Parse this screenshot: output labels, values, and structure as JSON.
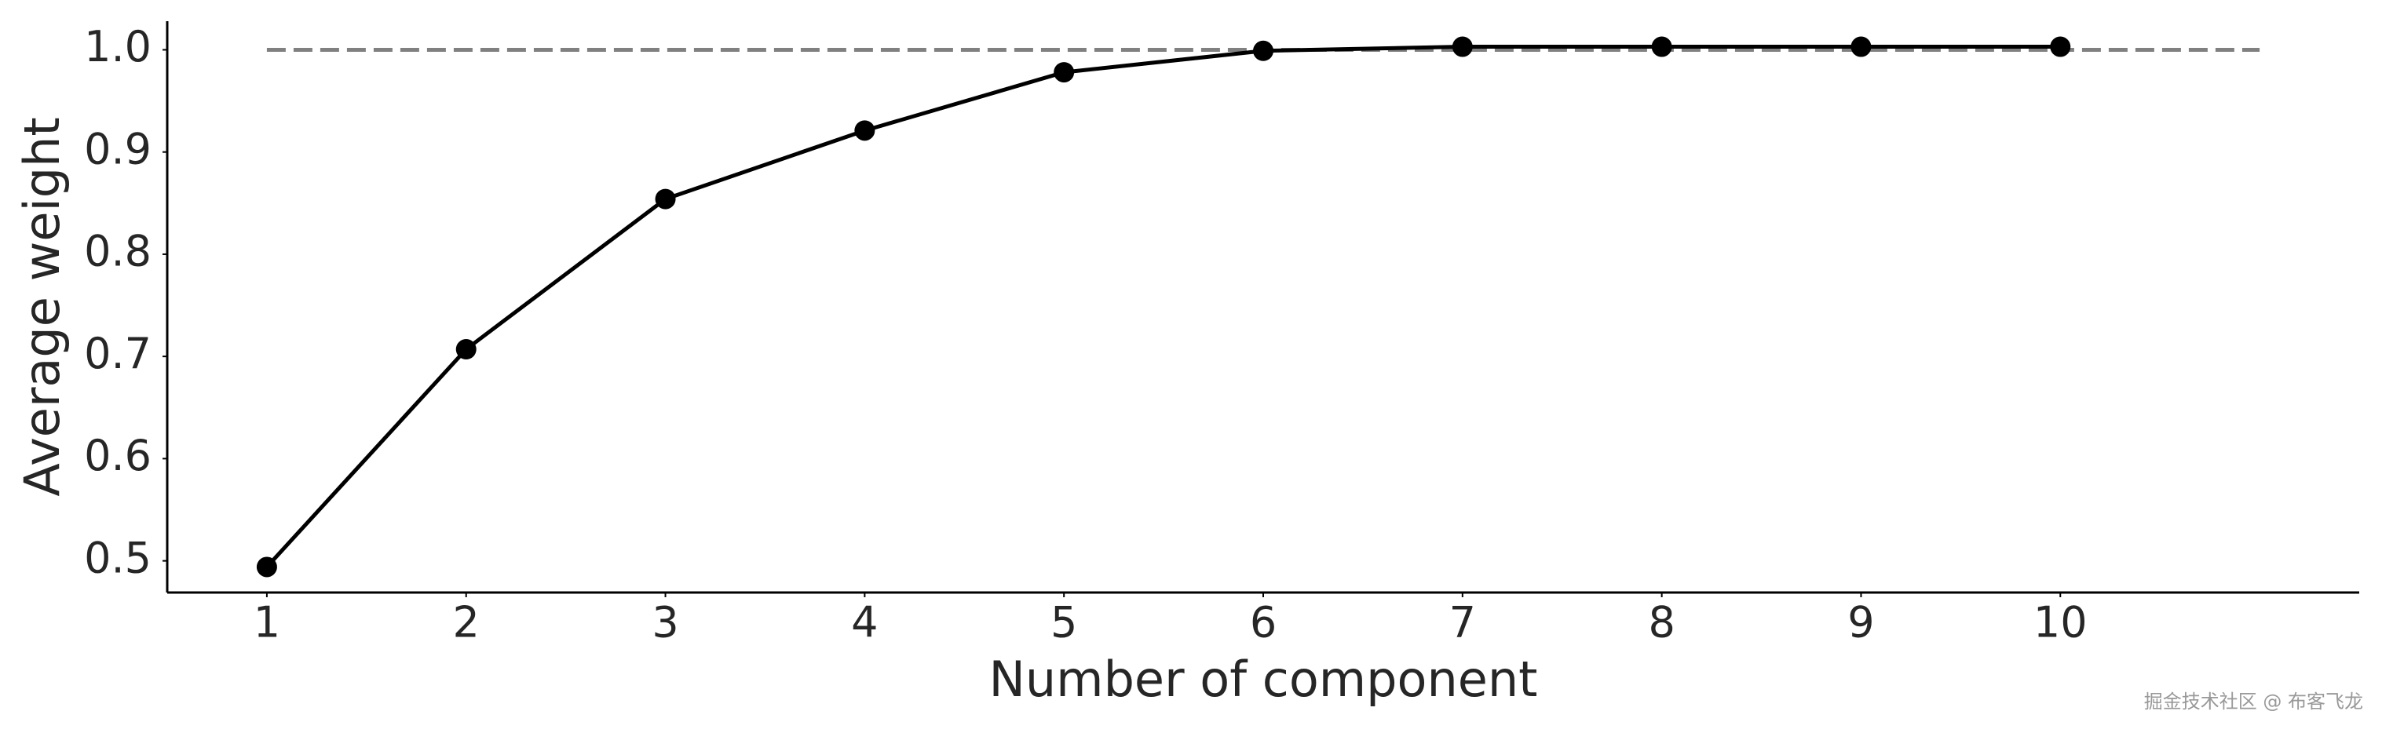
{
  "chart_data": {
    "type": "line",
    "x_label": "Number of component",
    "y_label": "Average weight",
    "x": [
      1,
      2,
      3,
      4,
      5,
      6,
      7,
      8,
      9,
      10
    ],
    "series": [
      {
        "color": "#000000",
        "values": [
          0.494,
          0.707,
          0.854,
          0.921,
          0.978,
          0.999,
          1.003,
          1.003,
          1.003,
          1.003
        ]
      }
    ],
    "reference_line": {
      "y": 1,
      "x": [
        1,
        11
      ],
      "color": "#808080",
      "dashed": true
    },
    "xlim": [
      0.5,
      11.5
    ],
    "ylim": [
      0.469,
      1.028
    ],
    "xticks": [
      1,
      2,
      3,
      4,
      5,
      6,
      7,
      8,
      9,
      10
    ],
    "yticks": [
      0.5,
      0.6,
      0.7,
      0.8,
      0.9,
      {
        "value": 1,
        "label": "1.0"
      }
    ],
    "grid": false,
    "watermark": "掘金技术社区 @ 布客飞龙"
  }
}
